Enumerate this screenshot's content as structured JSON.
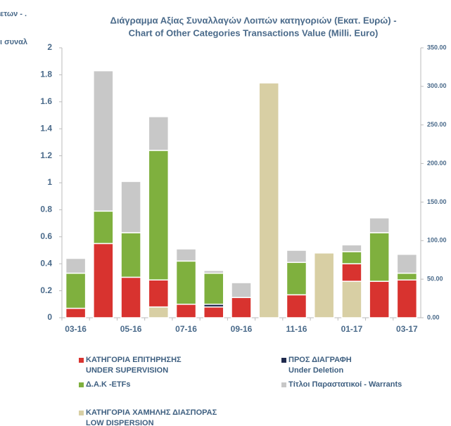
{
  "chart_data": {
    "type": "stacked_bar",
    "title": "Διάγραμμα Αξίας Συναλλαγών Λοιπών κατηγοριών (Εκατ.  Ευρώ) -",
    "subtitle": "Chart of Other Categories Transactions Value (Milli. Euro)",
    "clipped_labels": [
      "ετων - .",
      "ι συναλ"
    ],
    "categories": [
      "03-16",
      null,
      "05-16",
      null,
      "07-16",
      null,
      "09-16",
      null,
      "11-16",
      null,
      "01-17",
      null,
      "03-17"
    ],
    "series": [
      {
        "name": "ΚΑΤΗΓΟΡΙΑ ΧΑΜΗΛΗΣ ΔΙΑΣΠΟΡΑΣ\nLOW DISPERSION",
        "color": "#d8cfa4",
        "values": [
          0,
          0,
          0,
          0.08,
          0,
          0,
          0,
          1.74,
          0,
          0.48,
          0.27,
          0,
          0
        ]
      },
      {
        "name": "ΚΑΤΗΓΟΡΙΑ ΕΠΙΤΗΡΗΣΗΣ\nUNDER SUPERVISION",
        "color": "#d8332f",
        "values": [
          0.07,
          0.55,
          0.3,
          0.2,
          0.1,
          0.08,
          0.15,
          0,
          0.17,
          0,
          0.13,
          0.27,
          0.28
        ]
      },
      {
        "name": "ΠΡΟΣ ΔΙΑΓΡΑΦΗ\nUnder Deletion",
        "color": "#1f2a4d",
        "values": [
          0,
          0,
          0,
          0,
          0,
          0.02,
          0,
          0,
          0,
          0,
          0,
          0,
          0
        ]
      },
      {
        "name": "Δ.Α.Κ -ETFs",
        "color": "#7fb03e",
        "values": [
          0.26,
          0.24,
          0.33,
          0.96,
          0.32,
          0.23,
          0,
          0,
          0.24,
          0,
          0.09,
          0.36,
          0.05
        ]
      },
      {
        "name": "Τίτλοι Παραστατικοί - Warrants",
        "color": "#c8c8c8",
        "values": [
          0.11,
          1.04,
          0.38,
          0.25,
          0.09,
          0.02,
          0.11,
          0,
          0.09,
          0,
          0.05,
          0.11,
          0.14
        ]
      }
    ],
    "ylim": [
      0,
      2
    ],
    "yticks": [
      0,
      0.2,
      0.4,
      0.6,
      0.8,
      1,
      1.2,
      1.4,
      1.6,
      1.8,
      2
    ],
    "y2lim": [
      0,
      350
    ],
    "y2ticks": [
      {
        "value": 0,
        "label": "0.00"
      },
      {
        "value": 50,
        "label": "50.00"
      },
      {
        "value": 100,
        "label": "100.00"
      },
      {
        "value": 150,
        "label": "150.00"
      },
      {
        "value": 200,
        "label": "200.00"
      },
      {
        "value": 250,
        "label": "250.00"
      },
      {
        "value": 300,
        "label": "300.00"
      },
      {
        "value": 350,
        "label": "350.00"
      }
    ]
  }
}
